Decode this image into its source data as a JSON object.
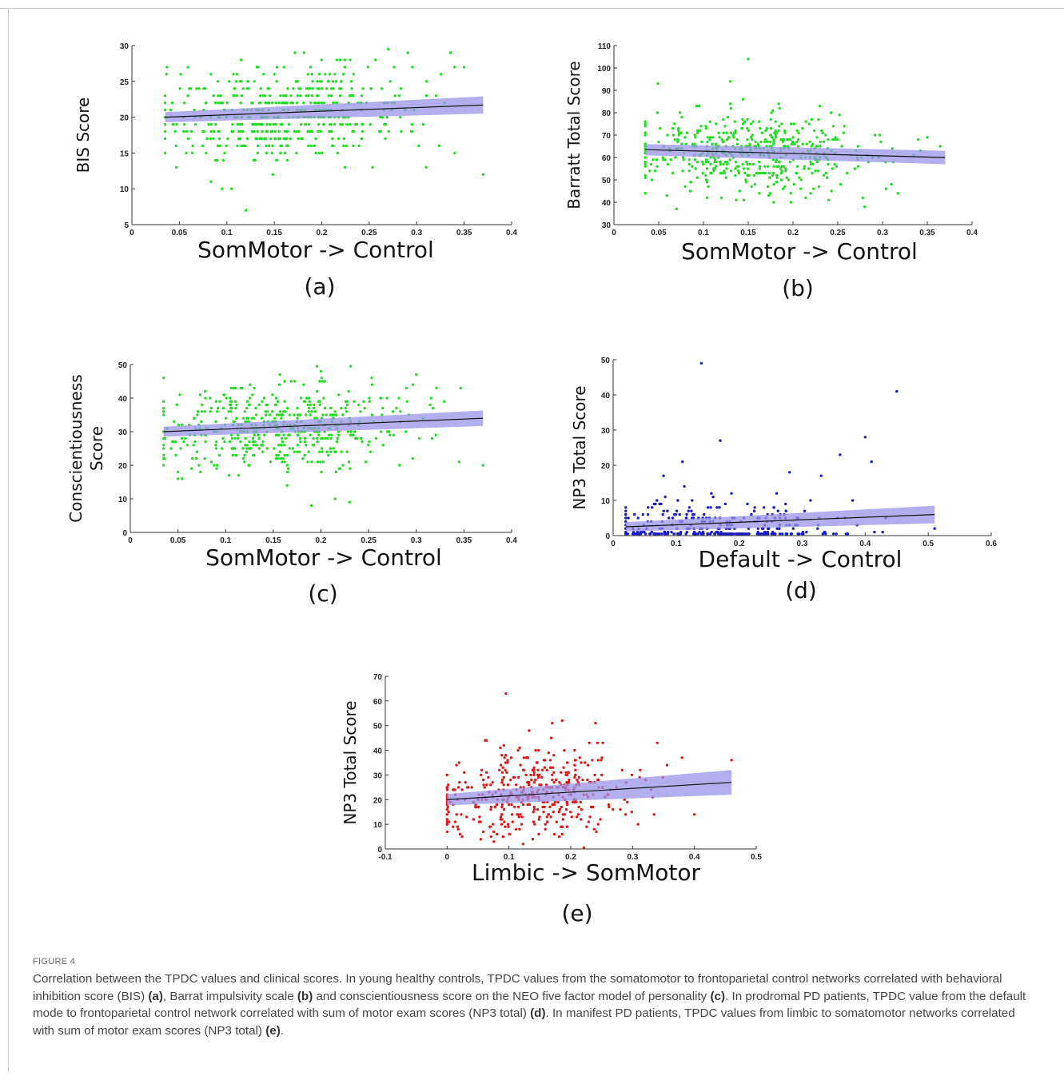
{
  "figure": {
    "label": "FIGURE 4",
    "caption": [
      {
        "t": "Correlation between the TPDC values and clinical scores. In young healthy controls, TPDC values from the somatomotor to frontoparietal control networks correlated with behavioral inhibition score (BIS) ",
        "b": false
      },
      {
        "t": "(a)",
        "b": true
      },
      {
        "t": ", Barrat impulsivity scale ",
        "b": false
      },
      {
        "t": "(b)",
        "b": true
      },
      {
        "t": " and conscientiousness score on the NEO five factor model of personality ",
        "b": false
      },
      {
        "t": "(c)",
        "b": true
      },
      {
        "t": ". In prodromal PD patients, TPDC value from the default mode to frontoparietal control network correlated with sum of motor exam scores (NP3 total) ",
        "b": false
      },
      {
        "t": "(d)",
        "b": true
      },
      {
        "t": ". In manifest PD patients, TPDC values from limbic to somatomotor networks correlated with sum of motor exam scores (NP3 total) ",
        "b": false
      },
      {
        "t": "(e)",
        "b": true
      },
      {
        "t": ".",
        "b": false
      }
    ]
  },
  "chart_data": [
    {
      "id": "a",
      "type": "scatter",
      "panel_label": "(a)",
      "xlabel": "SomMotor -> Control",
      "ylabel": "BIS Score",
      "xlim": [
        0,
        0.4
      ],
      "ylim": [
        5,
        30
      ],
      "xticks": [
        0,
        0.05,
        0.1,
        0.15,
        0.2,
        0.25,
        0.3,
        0.35,
        0.4
      ],
      "yticks": [
        5,
        10,
        15,
        20,
        25,
        30
      ],
      "point_color": "#22dd22",
      "n_points": 520,
      "x_range": [
        0.035,
        0.37
      ],
      "y_values_integer": true,
      "x_mean": 0.16,
      "x_sd": 0.065,
      "y_sd": 3.2,
      "fit": {
        "x0": 0.035,
        "y0": 20.0,
        "x1": 0.37,
        "y1": 21.7,
        "ci_half_start": 0.7,
        "ci_half_end": 1.2
      },
      "band_color": "#9a94e8",
      "line_color": "#111111",
      "outliers": [
        [
          0.037,
          27
        ],
        [
          0.12,
          7
        ],
        [
          0.34,
          27
        ],
        [
          0.35,
          27
        ],
        [
          0.37,
          12
        ],
        [
          0.34,
          15
        ],
        [
          0.31,
          13
        ],
        [
          0.105,
          10
        ],
        [
          0.095,
          10
        ],
        [
          0.23,
          28
        ],
        [
          0.115,
          28
        ]
      ]
    },
    {
      "id": "b",
      "type": "scatter",
      "panel_label": "(b)",
      "xlabel": "SomMotor -> Control",
      "ylabel": "Barratt Total Score",
      "xlim": [
        0,
        0.4
      ],
      "ylim": [
        30,
        110
      ],
      "xticks": [
        0,
        0.05,
        0.1,
        0.15,
        0.2,
        0.25,
        0.3,
        0.35,
        0.4
      ],
      "yticks": [
        30,
        40,
        50,
        60,
        70,
        80,
        90,
        100,
        110
      ],
      "point_color": "#22dd22",
      "n_points": 520,
      "x_range": [
        0.035,
        0.37
      ],
      "y_values_integer": true,
      "x_mean": 0.155,
      "x_sd": 0.065,
      "y_sd": 9,
      "fit": {
        "x0": 0.035,
        "y0": 63.5,
        "x1": 0.37,
        "y1": 60.0,
        "ci_half_start": 2.5,
        "ci_half_end": 3.0
      },
      "band_color": "#9a94e8",
      "line_color": "#111111",
      "outliers": [
        [
          0.15,
          104
        ],
        [
          0.13,
          94
        ],
        [
          0.07,
          37
        ],
        [
          0.28,
          38
        ],
        [
          0.34,
          68
        ],
        [
          0.35,
          69
        ],
        [
          0.04,
          54
        ]
      ]
    },
    {
      "id": "c",
      "type": "scatter",
      "panel_label": "(c)",
      "xlabel": "SomMotor -> Control",
      "ylabel": "Conscientiousness Score",
      "ylabel_lines": [
        "Conscientiousness",
        "Score"
      ],
      "xlim": [
        0,
        0.4
      ],
      "ylim": [
        0,
        50
      ],
      "xticks": [
        0,
        0.05,
        0.1,
        0.15,
        0.2,
        0.25,
        0.3,
        0.35,
        0.4
      ],
      "yticks": [
        0,
        10,
        20,
        30,
        40,
        50
      ],
      "point_color": "#22dd22",
      "n_points": 520,
      "x_range": [
        0.035,
        0.37
      ],
      "y_values_integer": true,
      "x_mean": 0.155,
      "x_sd": 0.065,
      "y_sd": 6.5,
      "fit": {
        "x0": 0.035,
        "y0": 30.0,
        "x1": 0.37,
        "y1": 34.0,
        "ci_half_start": 1.5,
        "ci_half_end": 2.3
      },
      "band_color": "#9a94e8",
      "line_color": "#111111",
      "outliers": [
        [
          0.19,
          8
        ],
        [
          0.23,
          9
        ],
        [
          0.37,
          20
        ],
        [
          0.345,
          21
        ],
        [
          0.05,
          16
        ],
        [
          0.2,
          48
        ],
        [
          0.3,
          47
        ]
      ]
    },
    {
      "id": "d",
      "type": "scatter",
      "panel_label": "(d)",
      "xlabel": "Default -> Control",
      "ylabel": "NP3 Total Score",
      "xlim": [
        0,
        0.6
      ],
      "ylim": [
        0,
        50
      ],
      "xticks": [
        0,
        0.1,
        0.2,
        0.3,
        0.4,
        0.5,
        0.6
      ],
      "yticks": [
        0,
        10,
        20,
        30,
        40,
        50
      ],
      "point_color": "#1a1ac8",
      "n_points": 330,
      "x_range": [
        0.02,
        0.51
      ],
      "y_values_integer": true,
      "y_skewed": true,
      "x_mean": 0.17,
      "x_sd": 0.1,
      "y_sd": 3,
      "fit": {
        "x0": 0.02,
        "y0": 2.5,
        "x1": 0.51,
        "y1": 6.0,
        "ci_half_start": 1.3,
        "ci_half_end": 2.5
      },
      "band_color": "#9a94e8",
      "line_color": "#111111",
      "outliers": [
        [
          0.14,
          49
        ],
        [
          0.45,
          41
        ],
        [
          0.4,
          28
        ],
        [
          0.17,
          27
        ],
        [
          0.36,
          23
        ],
        [
          0.41,
          21
        ],
        [
          0.11,
          21
        ],
        [
          0.28,
          18
        ],
        [
          0.33,
          17
        ],
        [
          0.08,
          17
        ],
        [
          0.51,
          2
        ],
        [
          0.38,
          10
        ]
      ]
    },
    {
      "id": "e",
      "type": "scatter",
      "panel_label": "(e)",
      "xlabel": "Limbic -> SomMotor",
      "ylabel": "NP3 Total Score",
      "xlim": [
        -0.1,
        0.5
      ],
      "ylim": [
        0,
        70
      ],
      "xticks": [
        -0.1,
        0,
        0.1,
        0.2,
        0.3,
        0.4,
        0.5
      ],
      "yticks": [
        0,
        10,
        20,
        30,
        40,
        50,
        60,
        70
      ],
      "point_color": "#dd1a1a",
      "n_points": 430,
      "x_range": [
        0.0,
        0.46
      ],
      "y_values_integer": true,
      "x_mean": 0.14,
      "x_sd": 0.08,
      "y_sd": 9,
      "fit": {
        "x0": 0.0,
        "y0": 20.0,
        "x1": 0.46,
        "y1": 27.0,
        "ci_half_start": 2.3,
        "ci_half_end": 5.0
      },
      "band_color": "#9a94e8",
      "line_color": "#111111",
      "outliers": [
        [
          0.095,
          63
        ],
        [
          0.46,
          36
        ],
        [
          0.4,
          14
        ],
        [
          0.38,
          37
        ],
        [
          0.34,
          43
        ],
        [
          0.17,
          51
        ],
        [
          0.24,
          51
        ],
        [
          0.0,
          18
        ],
        [
          0.33,
          24
        ]
      ]
    }
  ]
}
